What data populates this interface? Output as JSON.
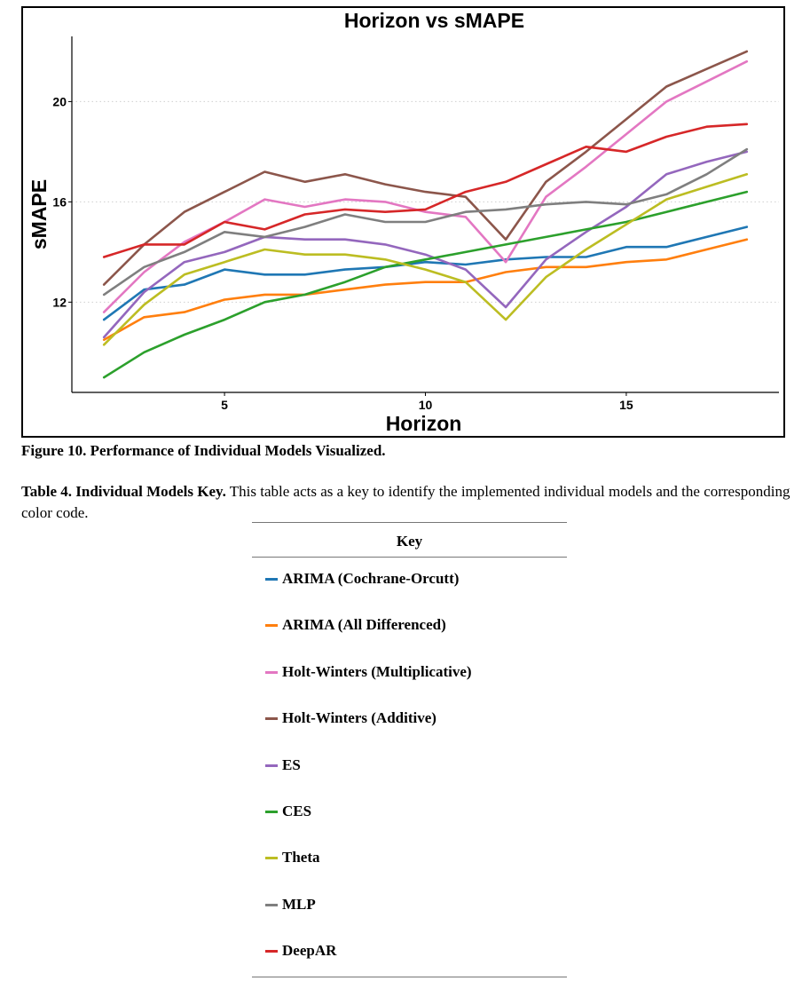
{
  "figure_caption": {
    "label": "Figure 10.",
    "text": " Performance of Individual Models Visualized."
  },
  "table_caption": {
    "label": "Table 4. Individual Models Key.",
    "text": " This table acts as a key to identify the implemented individual models and the corresponding color code."
  },
  "key_table": {
    "header": "Key",
    "rows": [
      {
        "label": "ARIMA (Cochrane-Orcutt)",
        "color": "#1f77b4"
      },
      {
        "label": "ARIMA (All Differenced)",
        "color": "#ff7f0e"
      },
      {
        "label": "Holt-Winters (Multiplicative)",
        "color": "#e377c2"
      },
      {
        "label": "Holt-Winters (Additive)",
        "color": "#8c564b"
      },
      {
        "label": "ES",
        "color": "#9467bd"
      },
      {
        "label": "CES",
        "color": "#2ca02c"
      },
      {
        "label": "Theta",
        "color": "#bcbd22"
      },
      {
        "label": "MLP",
        "color": "#7f7f7f"
      },
      {
        "label": "DeepAR",
        "color": "#d62728"
      }
    ]
  },
  "chart_data": {
    "type": "line",
    "title": "Horizon vs sMAPE",
    "xlabel": "Horizon",
    "ylabel": "sMAPE",
    "xlim": [
      1.2,
      18.8
    ],
    "ylim": [
      8.4,
      22.6
    ],
    "xticks": [
      5,
      10,
      15
    ],
    "yticks": [
      12,
      16,
      20
    ],
    "grid": "horizontal dotted",
    "legend": "none",
    "x": [
      2,
      3,
      4,
      5,
      6,
      7,
      8,
      9,
      10,
      11,
      12,
      13,
      14,
      15,
      16,
      17,
      18
    ],
    "series": [
      {
        "color": "#1f77b4",
        "values": [
          11.3,
          12.5,
          12.7,
          13.3,
          13.1,
          13.1,
          13.3,
          13.4,
          13.6,
          13.5,
          13.7,
          13.8,
          13.8,
          14.2,
          14.2,
          14.6,
          15.0
        ]
      },
      {
        "color": "#ff7f0e",
        "values": [
          10.5,
          11.4,
          11.6,
          12.1,
          12.3,
          12.3,
          12.5,
          12.7,
          12.8,
          12.8,
          13.2,
          13.4,
          13.4,
          13.6,
          13.7,
          14.1,
          14.5
        ]
      },
      {
        "color": "#e377c2",
        "values": [
          11.6,
          13.2,
          14.4,
          15.2,
          16.1,
          15.8,
          16.1,
          16.0,
          15.6,
          15.4,
          13.6,
          16.2,
          17.4,
          18.7,
          20.0,
          20.8,
          21.6
        ]
      },
      {
        "color": "#8c564b",
        "values": [
          12.7,
          14.3,
          15.6,
          16.4,
          17.2,
          16.8,
          17.1,
          16.7,
          16.4,
          16.2,
          14.5,
          16.8,
          18.0,
          19.3,
          20.6,
          21.3,
          22.0
        ]
      },
      {
        "color": "#9467bd",
        "values": [
          10.6,
          12.4,
          13.6,
          14.0,
          14.6,
          14.5,
          14.5,
          14.3,
          13.9,
          13.3,
          11.8,
          13.7,
          14.8,
          15.8,
          17.1,
          17.6,
          18.0
        ]
      },
      {
        "color": "#2ca02c",
        "values": [
          9.0,
          10.0,
          10.7,
          11.3,
          12.0,
          12.3,
          12.8,
          13.4,
          13.7,
          14.0,
          14.3,
          14.6,
          14.9,
          15.2,
          15.6,
          16.0,
          16.4
        ]
      },
      {
        "color": "#bcbd22",
        "values": [
          10.3,
          11.9,
          13.1,
          13.6,
          14.1,
          13.9,
          13.9,
          13.7,
          13.3,
          12.8,
          11.3,
          13.0,
          14.1,
          15.1,
          16.1,
          16.6,
          17.1
        ]
      },
      {
        "color": "#7f7f7f",
        "values": [
          12.3,
          13.4,
          14.0,
          14.8,
          14.6,
          15.0,
          15.5,
          15.2,
          15.2,
          15.6,
          15.7,
          15.9,
          16.0,
          15.9,
          16.3,
          17.1,
          18.1
        ]
      },
      {
        "color": "#d62728",
        "values": [
          13.8,
          14.3,
          14.3,
          15.2,
          14.9,
          15.5,
          15.7,
          15.6,
          15.7,
          16.4,
          16.8,
          17.5,
          18.2,
          18.0,
          18.6,
          19.0,
          19.1
        ]
      }
    ]
  }
}
